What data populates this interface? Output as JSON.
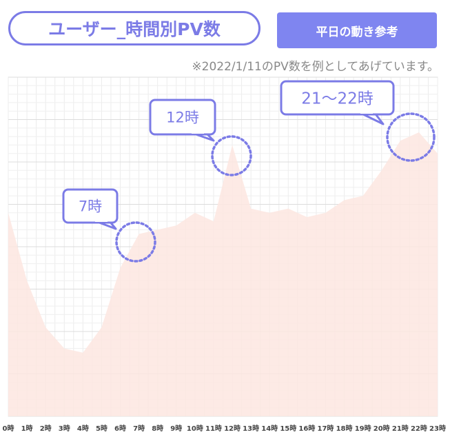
{
  "header": {
    "title": "ユーザー_時間別PV数",
    "button_label": "平日の動き参考",
    "note": "※2022/1/11のPV数を例としてあげています。"
  },
  "colors": {
    "accent": "#7b7be6",
    "area_fill": "#fde6e1",
    "grid": "#dcdcdc"
  },
  "chart_data": {
    "type": "area",
    "categories": [
      "0時",
      "1時",
      "2時",
      "3時",
      "4時",
      "5時",
      "6時",
      "7時",
      "8時",
      "9時",
      "10時",
      "11時",
      "12時",
      "13時",
      "14時",
      "15時",
      "16時",
      "17時",
      "18時",
      "19時",
      "20時",
      "21時",
      "22時",
      "23時"
    ],
    "values": [
      48,
      32,
      21,
      16,
      15,
      21,
      35,
      43,
      44,
      45,
      48,
      46,
      64,
      49,
      48,
      49,
      47,
      48,
      51,
      52,
      58,
      65,
      67,
      62
    ],
    "ylim": [
      0,
      80
    ],
    "grid": true,
    "annotations": [
      {
        "label": "7時",
        "index": 7
      },
      {
        "label": "12時",
        "index": 12
      },
      {
        "label": "21～22時",
        "index": 22
      }
    ]
  }
}
